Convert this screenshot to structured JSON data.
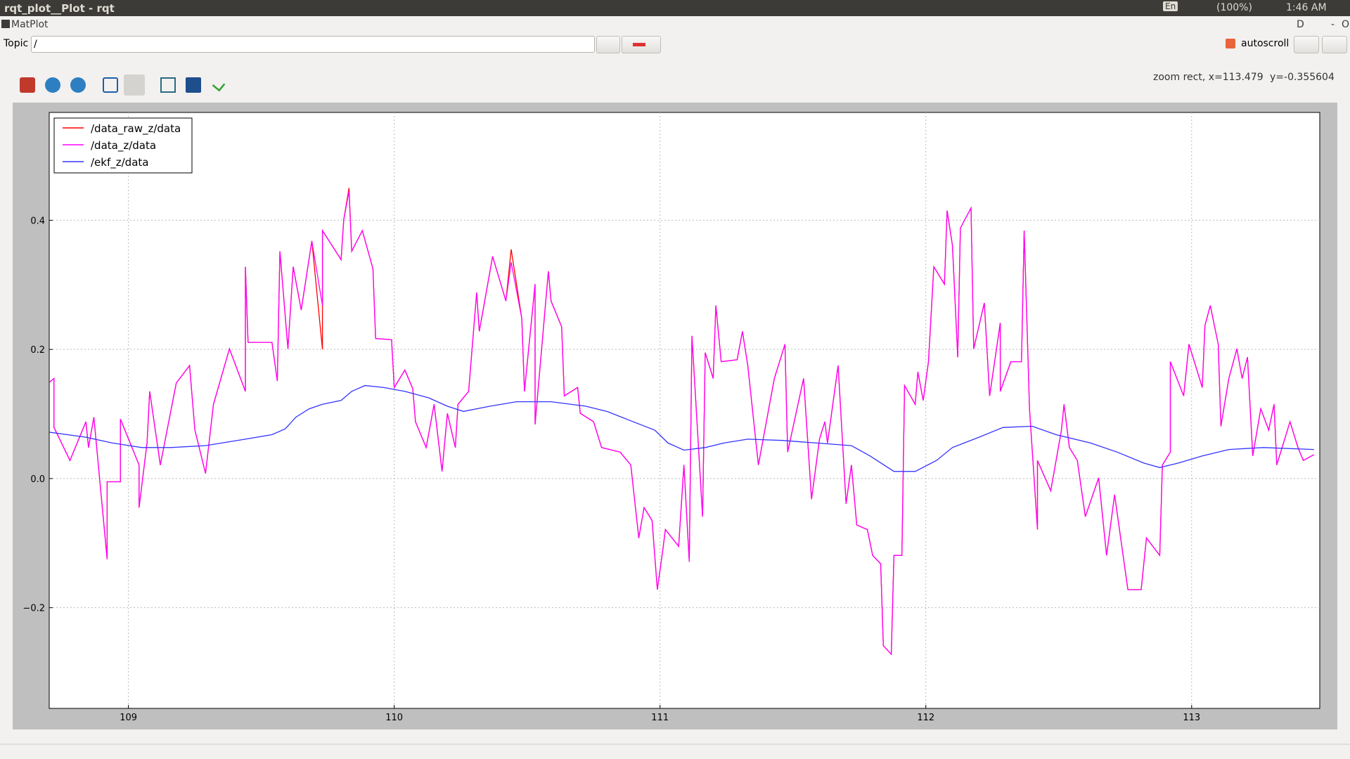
{
  "window": {
    "title": "rqt_plot__Plot - rqt",
    "tray": {
      "keyboard": "En",
      "battery": "(100%)",
      "clock": "1:46 AM"
    }
  },
  "plugin": {
    "title": "MatPlot",
    "controls": [
      "D",
      "-",
      "O"
    ]
  },
  "topic_bar": {
    "label": "Topic",
    "input": "/",
    "autoscroll": "autoscroll"
  },
  "status": {
    "x": "zoom rect, x=113.479",
    "y": "y=-0.355604"
  },
  "chart_data": {
    "type": "line",
    "xlim": [
      108.702,
      113.482
    ],
    "ylim": [
      -0.356,
      0.567
    ],
    "xticks": [
      109,
      110,
      111,
      112,
      113
    ],
    "yticks": [
      0.4,
      0.2,
      {
        "value": 0,
        "label": "0.0"
      },
      {
        "value": -0.2,
        "label": "−0.2"
      }
    ],
    "grid": true,
    "legend": "upper-left",
    "x": [
      108.7,
      108.72,
      108.72,
      108.78,
      108.84,
      108.85,
      108.87,
      108.92,
      108.92,
      108.97,
      108.97,
      109.04,
      109.04,
      109.07,
      109.08,
      109.12,
      109.18,
      109.23,
      109.25,
      109.29,
      109.32,
      109.38,
      109.44,
      109.44,
      109.45,
      109.54,
      109.56,
      109.57,
      109.6,
      109.62,
      109.65,
      109.69,
      109.73,
      109.73,
      109.8,
      109.81,
      109.83,
      109.84,
      109.88,
      109.92,
      109.93,
      109.99,
      110.0,
      110.04,
      110.07,
      110.08,
      110.12,
      110.15,
      110.18,
      110.2,
      110.23,
      110.24,
      110.28,
      110.31,
      110.32,
      110.37,
      110.42,
      110.44,
      110.48,
      110.49,
      110.53,
      110.53,
      110.58,
      110.59,
      110.63,
      110.64,
      110.69,
      110.7,
      110.75,
      110.78,
      110.85,
      110.89,
      110.92,
      110.94,
      110.97,
      110.99,
      111.01,
      111.02,
      111.07,
      111.09,
      111.11,
      111.12,
      111.16,
      111.17,
      111.2,
      111.21,
      111.23,
      111.29,
      111.31,
      111.33,
      111.37,
      111.43,
      111.47,
      111.48,
      111.54,
      111.57,
      111.6,
      111.62,
      111.63,
      111.67,
      111.7,
      111.72,
      111.74,
      111.78,
      111.8,
      111.83,
      111.84,
      111.87,
      111.88,
      111.91,
      111.92,
      111.96,
      111.97,
      111.99,
      112.01,
      112.03,
      112.07,
      112.08,
      112.1,
      112.12,
      112.13,
      112.17,
      112.18,
      112.22,
      112.24,
      112.28,
      112.28,
      112.32,
      112.36,
      112.37,
      112.39,
      112.42,
      112.42,
      112.47,
      112.51,
      112.52,
      112.54,
      112.57,
      112.6,
      112.65,
      112.68,
      112.71,
      112.76,
      112.81,
      112.83,
      112.88,
      112.89,
      112.92,
      112.92,
      112.97,
      112.99,
      113.04,
      113.05,
      113.07,
      113.1,
      113.11,
      113.14,
      113.17,
      113.19,
      113.21,
      113.23,
      113.26,
      113.29,
      113.31,
      113.32,
      113.37,
      113.4,
      113.42,
      113.46
    ],
    "series": [
      {
        "name": "/data_raw_z/data",
        "color": "#ff0000",
        "values": [
          0.148,
          0.155,
          0.079,
          0.028,
          0.088,
          0.048,
          0.095,
          -0.125,
          -0.005,
          -0.005,
          0.092,
          0.021,
          -0.045,
          0.055,
          0.135,
          0.021,
          0.148,
          0.175,
          0.075,
          0.008,
          0.115,
          0.201,
          0.135,
          0.328,
          0.211,
          0.211,
          0.151,
          0.352,
          0.201,
          0.328,
          0.261,
          0.368,
          0.2,
          0.384,
          0.339,
          0.401,
          0.45,
          0.352,
          0.384,
          0.325,
          0.217,
          0.215,
          0.141,
          0.168,
          0.139,
          0.088,
          0.048,
          0.115,
          0.011,
          0.101,
          0.048,
          0.115,
          0.135,
          0.288,
          0.228,
          0.344,
          0.275,
          0.355,
          0.248,
          0.135,
          0.301,
          0.084,
          0.321,
          0.275,
          0.235,
          0.128,
          0.141,
          0.101,
          0.088,
          0.048,
          0.041,
          0.021,
          -0.092,
          -0.045,
          -0.065,
          -0.172,
          -0.112,
          -0.079,
          -0.105,
          0.021,
          -0.129,
          0.221,
          -0.059,
          0.195,
          0.155,
          0.268,
          0.181,
          0.184,
          0.228,
          0.175,
          0.021,
          0.155,
          0.208,
          0.041,
          0.155,
          -0.032,
          0.061,
          0.088,
          0.055,
          0.175,
          -0.039,
          0.021,
          -0.072,
          -0.079,
          -0.119,
          -0.132,
          -0.259,
          -0.272,
          -0.119,
          -0.119,
          0.144,
          0.115,
          0.165,
          0.121,
          0.181,
          0.328,
          0.301,
          0.415,
          0.361,
          0.188,
          0.388,
          0.419,
          0.201,
          0.272,
          0.128,
          0.241,
          0.135,
          0.181,
          0.181,
          0.384,
          0.108,
          -0.079,
          0.028,
          -0.019,
          0.075,
          0.115,
          0.048,
          0.028,
          -0.059,
          0.001,
          -0.119,
          -0.025,
          -0.172,
          -0.172,
          -0.092,
          -0.119,
          0.021,
          0.041,
          0.181,
          0.128,
          0.208,
          0.141,
          0.237,
          0.268,
          0.208,
          0.081,
          0.155,
          0.201,
          0.155,
          0.188,
          0.035,
          0.108,
          0.075,
          0.115,
          0.021,
          0.088,
          0.048,
          0.028,
          0.037
        ]
      },
      {
        "name": "/data_z/data",
        "color": "#ff00ff",
        "values": [
          0.148,
          0.155,
          0.079,
          0.028,
          0.088,
          0.048,
          0.095,
          -0.125,
          -0.005,
          -0.005,
          0.092,
          0.021,
          -0.045,
          0.055,
          0.135,
          0.021,
          0.148,
          0.175,
          0.075,
          0.008,
          0.115,
          0.201,
          0.135,
          0.328,
          0.211,
          0.211,
          0.151,
          0.352,
          0.201,
          0.328,
          0.261,
          0.368,
          0.268,
          0.384,
          0.339,
          0.401,
          0.445,
          0.352,
          0.384,
          0.325,
          0.217,
          0.215,
          0.141,
          0.168,
          0.139,
          0.088,
          0.048,
          0.115,
          0.011,
          0.101,
          0.048,
          0.115,
          0.135,
          0.288,
          0.228,
          0.344,
          0.275,
          0.335,
          0.248,
          0.135,
          0.301,
          0.084,
          0.321,
          0.275,
          0.235,
          0.128,
          0.141,
          0.101,
          0.088,
          0.048,
          0.041,
          0.021,
          -0.092,
          -0.045,
          -0.065,
          -0.172,
          -0.112,
          -0.079,
          -0.105,
          0.021,
          -0.129,
          0.221,
          -0.059,
          0.195,
          0.155,
          0.268,
          0.181,
          0.184,
          0.228,
          0.175,
          0.021,
          0.155,
          0.208,
          0.041,
          0.155,
          -0.032,
          0.061,
          0.088,
          0.055,
          0.175,
          -0.039,
          0.021,
          -0.072,
          -0.079,
          -0.119,
          -0.132,
          -0.259,
          -0.272,
          -0.119,
          -0.119,
          0.144,
          0.115,
          0.165,
          0.121,
          0.181,
          0.328,
          0.301,
          0.415,
          0.361,
          0.188,
          0.388,
          0.419,
          0.201,
          0.272,
          0.128,
          0.241,
          0.135,
          0.181,
          0.181,
          0.384,
          0.108,
          -0.079,
          0.028,
          -0.019,
          0.075,
          0.115,
          0.048,
          0.028,
          -0.059,
          0.001,
          -0.119,
          -0.025,
          -0.172,
          -0.172,
          -0.092,
          -0.119,
          0.021,
          0.041,
          0.181,
          0.128,
          0.208,
          0.141,
          0.237,
          0.268,
          0.208,
          0.081,
          0.155,
          0.201,
          0.155,
          0.188,
          0.035,
          0.108,
          0.075,
          0.115,
          0.021,
          0.088,
          0.048,
          0.028,
          0.037
        ]
      },
      {
        "name": "/ekf_z/data",
        "color": "#3333ff",
        "x": [
          108.7,
          108.84,
          108.94,
          109.05,
          109.16,
          109.29,
          109.35,
          109.44,
          109.54,
          109.59,
          109.63,
          109.68,
          109.73,
          109.8,
          109.84,
          109.89,
          109.96,
          110.04,
          110.13,
          110.2,
          110.26,
          110.36,
          110.46,
          110.59,
          110.72,
          110.8,
          110.88,
          110.98,
          111.03,
          111.09,
          111.17,
          111.24,
          111.33,
          111.46,
          111.59,
          111.72,
          111.79,
          111.88,
          111.96,
          112.04,
          112.1,
          112.2,
          112.29,
          112.4,
          112.49,
          112.62,
          112.72,
          112.82,
          112.88,
          112.95,
          113.04,
          113.14,
          113.27,
          113.46
        ],
        "values": [
          0.072,
          0.064,
          0.055,
          0.048,
          0.048,
          0.051,
          0.055,
          0.061,
          0.068,
          0.077,
          0.095,
          0.108,
          0.115,
          0.121,
          0.135,
          0.144,
          0.141,
          0.135,
          0.125,
          0.112,
          0.104,
          0.112,
          0.119,
          0.119,
          0.112,
          0.104,
          0.091,
          0.075,
          0.055,
          0.044,
          0.048,
          0.055,
          0.061,
          0.059,
          0.055,
          0.051,
          0.035,
          0.011,
          0.011,
          0.028,
          0.048,
          0.064,
          0.079,
          0.081,
          0.068,
          0.055,
          0.041,
          0.024,
          0.017,
          0.024,
          0.035,
          0.045,
          0.048,
          0.045
        ]
      }
    ]
  }
}
